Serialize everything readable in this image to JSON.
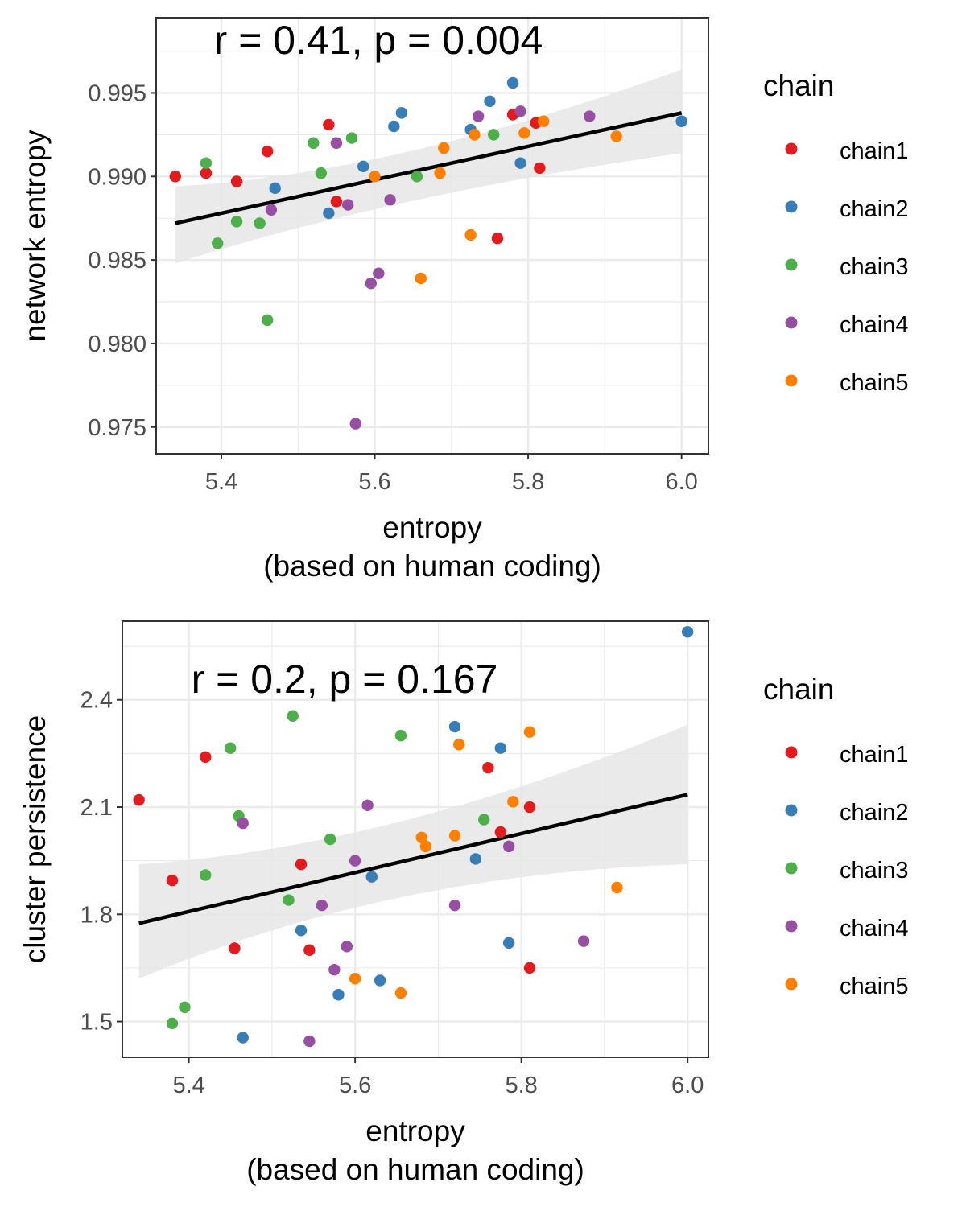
{
  "colors": {
    "chain1": "#E41A1C",
    "chain2": "#377EB8",
    "chain3": "#4DAF4A",
    "chain4": "#984EA3",
    "chain5": "#FF7F00",
    "fit_line": "#000000",
    "ribbon": "#e6e6e6",
    "grid": "#ebebeb"
  },
  "chart_data": [
    {
      "type": "scatter",
      "annotation": "r = 0.41, p = 0.004",
      "xlabel": "entropy",
      "xlabel2": "(based on human coding)",
      "ylabel": "network entropy",
      "xlim": [
        5.315,
        6.035
      ],
      "ylim": [
        0.9734,
        0.9995
      ],
      "xticks": [
        5.4,
        5.6,
        5.8,
        6.0
      ],
      "xtick_labels": [
        "5.4",
        "5.6",
        "5.8",
        "6.0"
      ],
      "yticks": [
        0.975,
        0.98,
        0.985,
        0.99,
        0.995
      ],
      "ytick_labels": [
        "0.975",
        "0.980",
        "0.985",
        "0.990",
        "0.995"
      ],
      "grid": true,
      "legend": {
        "title": "chain",
        "position": "right",
        "entries": [
          "chain1",
          "chain2",
          "chain3",
          "chain4",
          "chain5"
        ]
      },
      "fit": {
        "x": [
          5.34,
          6.0
        ],
        "y": [
          0.9872,
          0.9938
        ],
        "ci_low": [
          0.9848,
          0.9914
        ],
        "ci_high": [
          0.9894,
          0.9964
        ],
        "ci_mid_x": 5.62,
        "ci_mid_low": 0.9889,
        "ci_mid_high": 0.9901
      },
      "series": [
        {
          "name": "chain1",
          "points": [
            [
              5.34,
              0.99
            ],
            [
              5.38,
              0.9902
            ],
            [
              5.42,
              0.9897
            ],
            [
              5.46,
              0.9915
            ],
            [
              5.54,
              0.9931
            ],
            [
              5.55,
              0.9885
            ],
            [
              5.76,
              0.9863
            ],
            [
              5.78,
              0.9937
            ],
            [
              5.81,
              0.9932
            ],
            [
              5.815,
              0.9905
            ]
          ]
        },
        {
          "name": "chain2",
          "points": [
            [
              5.47,
              0.9893
            ],
            [
              5.54,
              0.9878
            ],
            [
              5.585,
              0.9906
            ],
            [
              5.625,
              0.993
            ],
            [
              5.635,
              0.9938
            ],
            [
              5.725,
              0.9928
            ],
            [
              5.75,
              0.9945
            ],
            [
              5.78,
              0.9956
            ],
            [
              5.79,
              0.9908
            ],
            [
              6.0,
              0.9933
            ]
          ]
        },
        {
          "name": "chain3",
          "points": [
            [
              5.38,
              0.9908
            ],
            [
              5.395,
              0.986
            ],
            [
              5.42,
              0.9873
            ],
            [
              5.45,
              0.9872
            ],
            [
              5.46,
              0.9814
            ],
            [
              5.52,
              0.992
            ],
            [
              5.53,
              0.9902
            ],
            [
              5.57,
              0.9923
            ],
            [
              5.655,
              0.99
            ],
            [
              5.755,
              0.9925
            ]
          ]
        },
        {
          "name": "chain4",
          "points": [
            [
              5.465,
              0.988
            ],
            [
              5.55,
              0.992
            ],
            [
              5.565,
              0.9883
            ],
            [
              5.575,
              0.9752
            ],
            [
              5.595,
              0.9836
            ],
            [
              5.605,
              0.9842
            ],
            [
              5.62,
              0.9886
            ],
            [
              5.735,
              0.9936
            ],
            [
              5.79,
              0.9939
            ],
            [
              5.88,
              0.9936
            ]
          ]
        },
        {
          "name": "chain5",
          "points": [
            [
              5.6,
              0.99
            ],
            [
              5.66,
              0.9839
            ],
            [
              5.685,
              0.9902
            ],
            [
              5.69,
              0.9917
            ],
            [
              5.725,
              0.9865
            ],
            [
              5.73,
              0.9925
            ],
            [
              5.795,
              0.9926
            ],
            [
              5.82,
              0.9933
            ],
            [
              5.915,
              0.9924
            ]
          ]
        }
      ]
    },
    {
      "type": "scatter",
      "annotation": "r = 0.2, p = 0.167",
      "xlabel": "entropy",
      "xlabel2": "(based on human coding)",
      "ylabel": "cluster persistence",
      "xlim": [
        5.32,
        6.025
      ],
      "ylim": [
        1.4,
        2.62
      ],
      "xticks": [
        5.4,
        5.6,
        5.8,
        6.0
      ],
      "xtick_labels": [
        "5.4",
        "5.6",
        "5.8",
        "6.0"
      ],
      "yticks": [
        1.5,
        1.8,
        2.1,
        2.4
      ],
      "ytick_labels": [
        "1.5",
        "1.8",
        "2.1",
        "2.4"
      ],
      "grid": true,
      "legend": {
        "title": "chain",
        "position": "right",
        "entries": [
          "chain1",
          "chain2",
          "chain3",
          "chain4",
          "chain5"
        ]
      },
      "fit": {
        "x": [
          5.34,
          6.0
        ],
        "y": [
          1.775,
          2.135
        ],
        "ci_low": [
          1.62,
          1.94
        ],
        "ci_high": [
          1.94,
          2.33
        ],
        "ci_mid_x": 5.64,
        "ci_mid_low": 1.915,
        "ci_mid_high": 1.985
      },
      "series": [
        {
          "name": "chain1",
          "points": [
            [
              5.34,
              2.12
            ],
            [
              5.38,
              1.895
            ],
            [
              5.42,
              2.24
            ],
            [
              5.455,
              1.705
            ],
            [
              5.535,
              1.94
            ],
            [
              5.545,
              1.7
            ],
            [
              5.76,
              2.21
            ],
            [
              5.775,
              2.03
            ],
            [
              5.81,
              2.1
            ],
            [
              5.81,
              1.65
            ]
          ]
        },
        {
          "name": "chain2",
          "points": [
            [
              5.465,
              1.455
            ],
            [
              5.535,
              1.755
            ],
            [
              5.58,
              1.575
            ],
            [
              5.62,
              1.905
            ],
            [
              5.63,
              1.615
            ],
            [
              5.72,
              2.325
            ],
            [
              5.745,
              1.955
            ],
            [
              5.775,
              2.265
            ],
            [
              5.785,
              1.72
            ],
            [
              6.0,
              2.59
            ]
          ]
        },
        {
          "name": "chain3",
          "points": [
            [
              5.38,
              1.495
            ],
            [
              5.395,
              1.54
            ],
            [
              5.42,
              1.91
            ],
            [
              5.45,
              2.265
            ],
            [
              5.46,
              2.075
            ],
            [
              5.52,
              1.84
            ],
            [
              5.525,
              2.355
            ],
            [
              5.57,
              2.01
            ],
            [
              5.655,
              2.3
            ],
            [
              5.755,
              2.065
            ]
          ]
        },
        {
          "name": "chain4",
          "points": [
            [
              5.465,
              2.055
            ],
            [
              5.545,
              1.445
            ],
            [
              5.56,
              1.825
            ],
            [
              5.575,
              1.645
            ],
            [
              5.59,
              1.71
            ],
            [
              5.6,
              1.95
            ],
            [
              5.615,
              2.105
            ],
            [
              5.72,
              1.825
            ],
            [
              5.785,
              1.99
            ],
            [
              5.875,
              1.725
            ]
          ]
        },
        {
          "name": "chain5",
          "points": [
            [
              5.6,
              1.62
            ],
            [
              5.655,
              1.58
            ],
            [
              5.68,
              2.015
            ],
            [
              5.685,
              1.99
            ],
            [
              5.72,
              2.02
            ],
            [
              5.725,
              2.275
            ],
            [
              5.79,
              2.115
            ],
            [
              5.81,
              2.31
            ],
            [
              5.915,
              1.875
            ]
          ]
        }
      ]
    }
  ]
}
